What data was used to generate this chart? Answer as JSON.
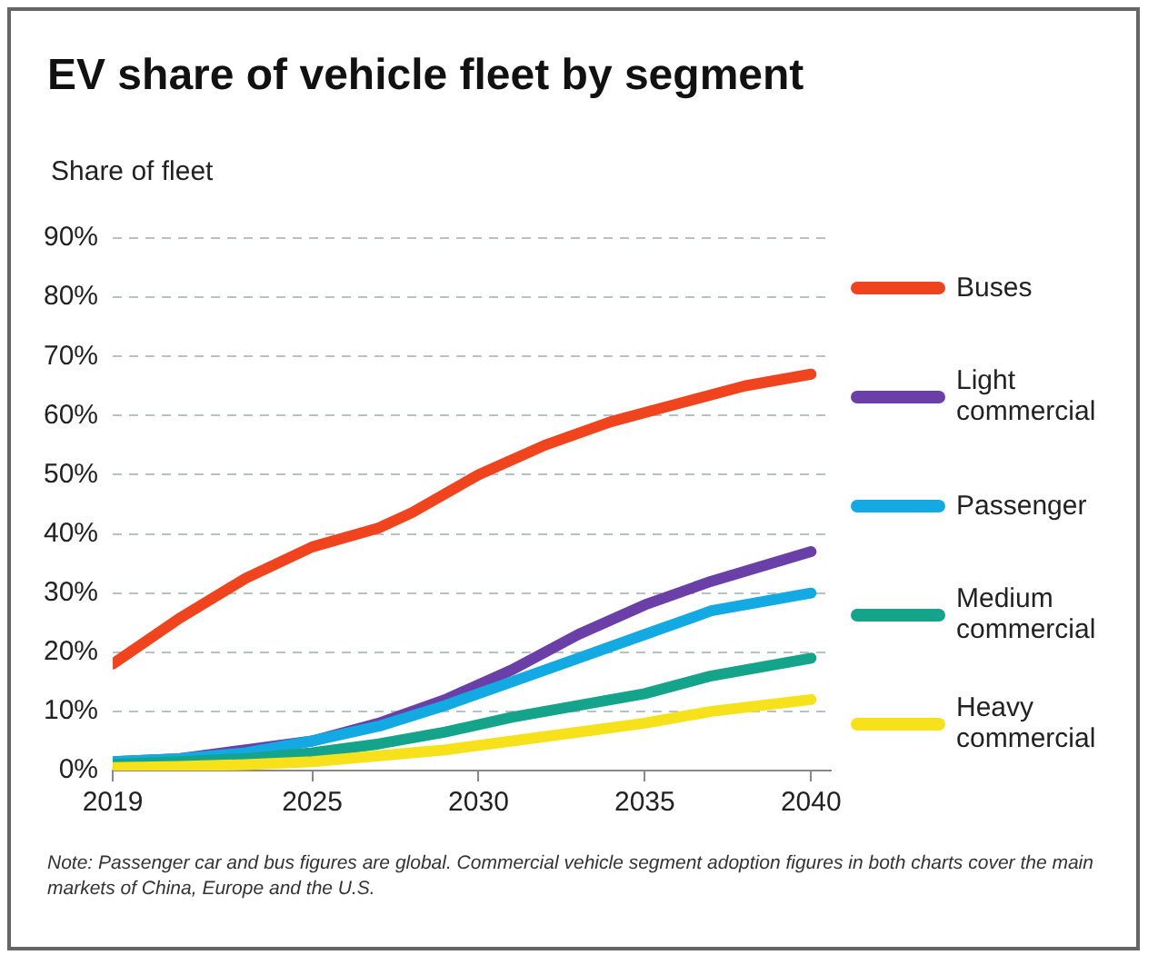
{
  "chart_data": {
    "type": "line",
    "title": "EV share of vehicle fleet by segment",
    "ylabel": "Share of fleet",
    "x": [
      2019,
      2021,
      2023,
      2025,
      2027,
      2029,
      2031,
      2033,
      2035,
      2037,
      2040
    ],
    "series": [
      {
        "name": "Buses",
        "color": "#f0441f",
        "x": [
          2019,
          2021,
          2023,
          2025,
          2027,
          2028,
          2030,
          2032,
          2034,
          2036,
          2038,
          2040
        ],
        "values": [
          18,
          25.7,
          32.5,
          37.8,
          41,
          43.6,
          50,
          55,
          59,
          62,
          65,
          67
        ]
      },
      {
        "name": "Light commercial",
        "color": "#6a3fa8",
        "values": [
          1.5,
          2,
          3.5,
          5,
          8,
          12,
          17,
          23,
          28,
          32,
          37
        ]
      },
      {
        "name": "Passenger",
        "color": "#13a9e2",
        "values": [
          1.5,
          2,
          3,
          5,
          7.5,
          11,
          15,
          19,
          23,
          27,
          30
        ]
      },
      {
        "name": "Medium commercial",
        "color": "#14a38b",
        "values": [
          1,
          1.5,
          2,
          3,
          4.5,
          6.5,
          9,
          11,
          13,
          16,
          19
        ]
      },
      {
        "name": "Heavy commercial",
        "color": "#f6e11a",
        "values": [
          0.5,
          0.7,
          1,
          1.5,
          2.5,
          3.5,
          5,
          6.5,
          8,
          10,
          12
        ]
      }
    ],
    "xlim": [
      2019,
      2040.6
    ],
    "xticks": [
      2019,
      2025,
      2030,
      2035,
      2040
    ],
    "ylim": [
      0,
      90
    ],
    "yticks": [
      {
        "value": 0,
        "label": "0%"
      },
      {
        "value": 10,
        "label": "10%"
      },
      {
        "value": 20,
        "label": "20%"
      },
      {
        "value": 30,
        "label": "30%"
      },
      {
        "value": 40,
        "label": "40%"
      },
      {
        "value": 50,
        "label": "50%"
      },
      {
        "value": 60,
        "label": "60%"
      },
      {
        "value": 70,
        "label": "70%"
      },
      {
        "value": 80,
        "label": "80%"
      },
      {
        "value": 90,
        "label": "90%"
      }
    ],
    "grid": "y",
    "legend": "right",
    "marker": "none",
    "line_style": "solid",
    "annotations": [
      "Note: Passenger car and bus figures are global. Commercial vehicle segment adoption figures in both charts cover the main markets of China, Europe and the U.S."
    ]
  }
}
